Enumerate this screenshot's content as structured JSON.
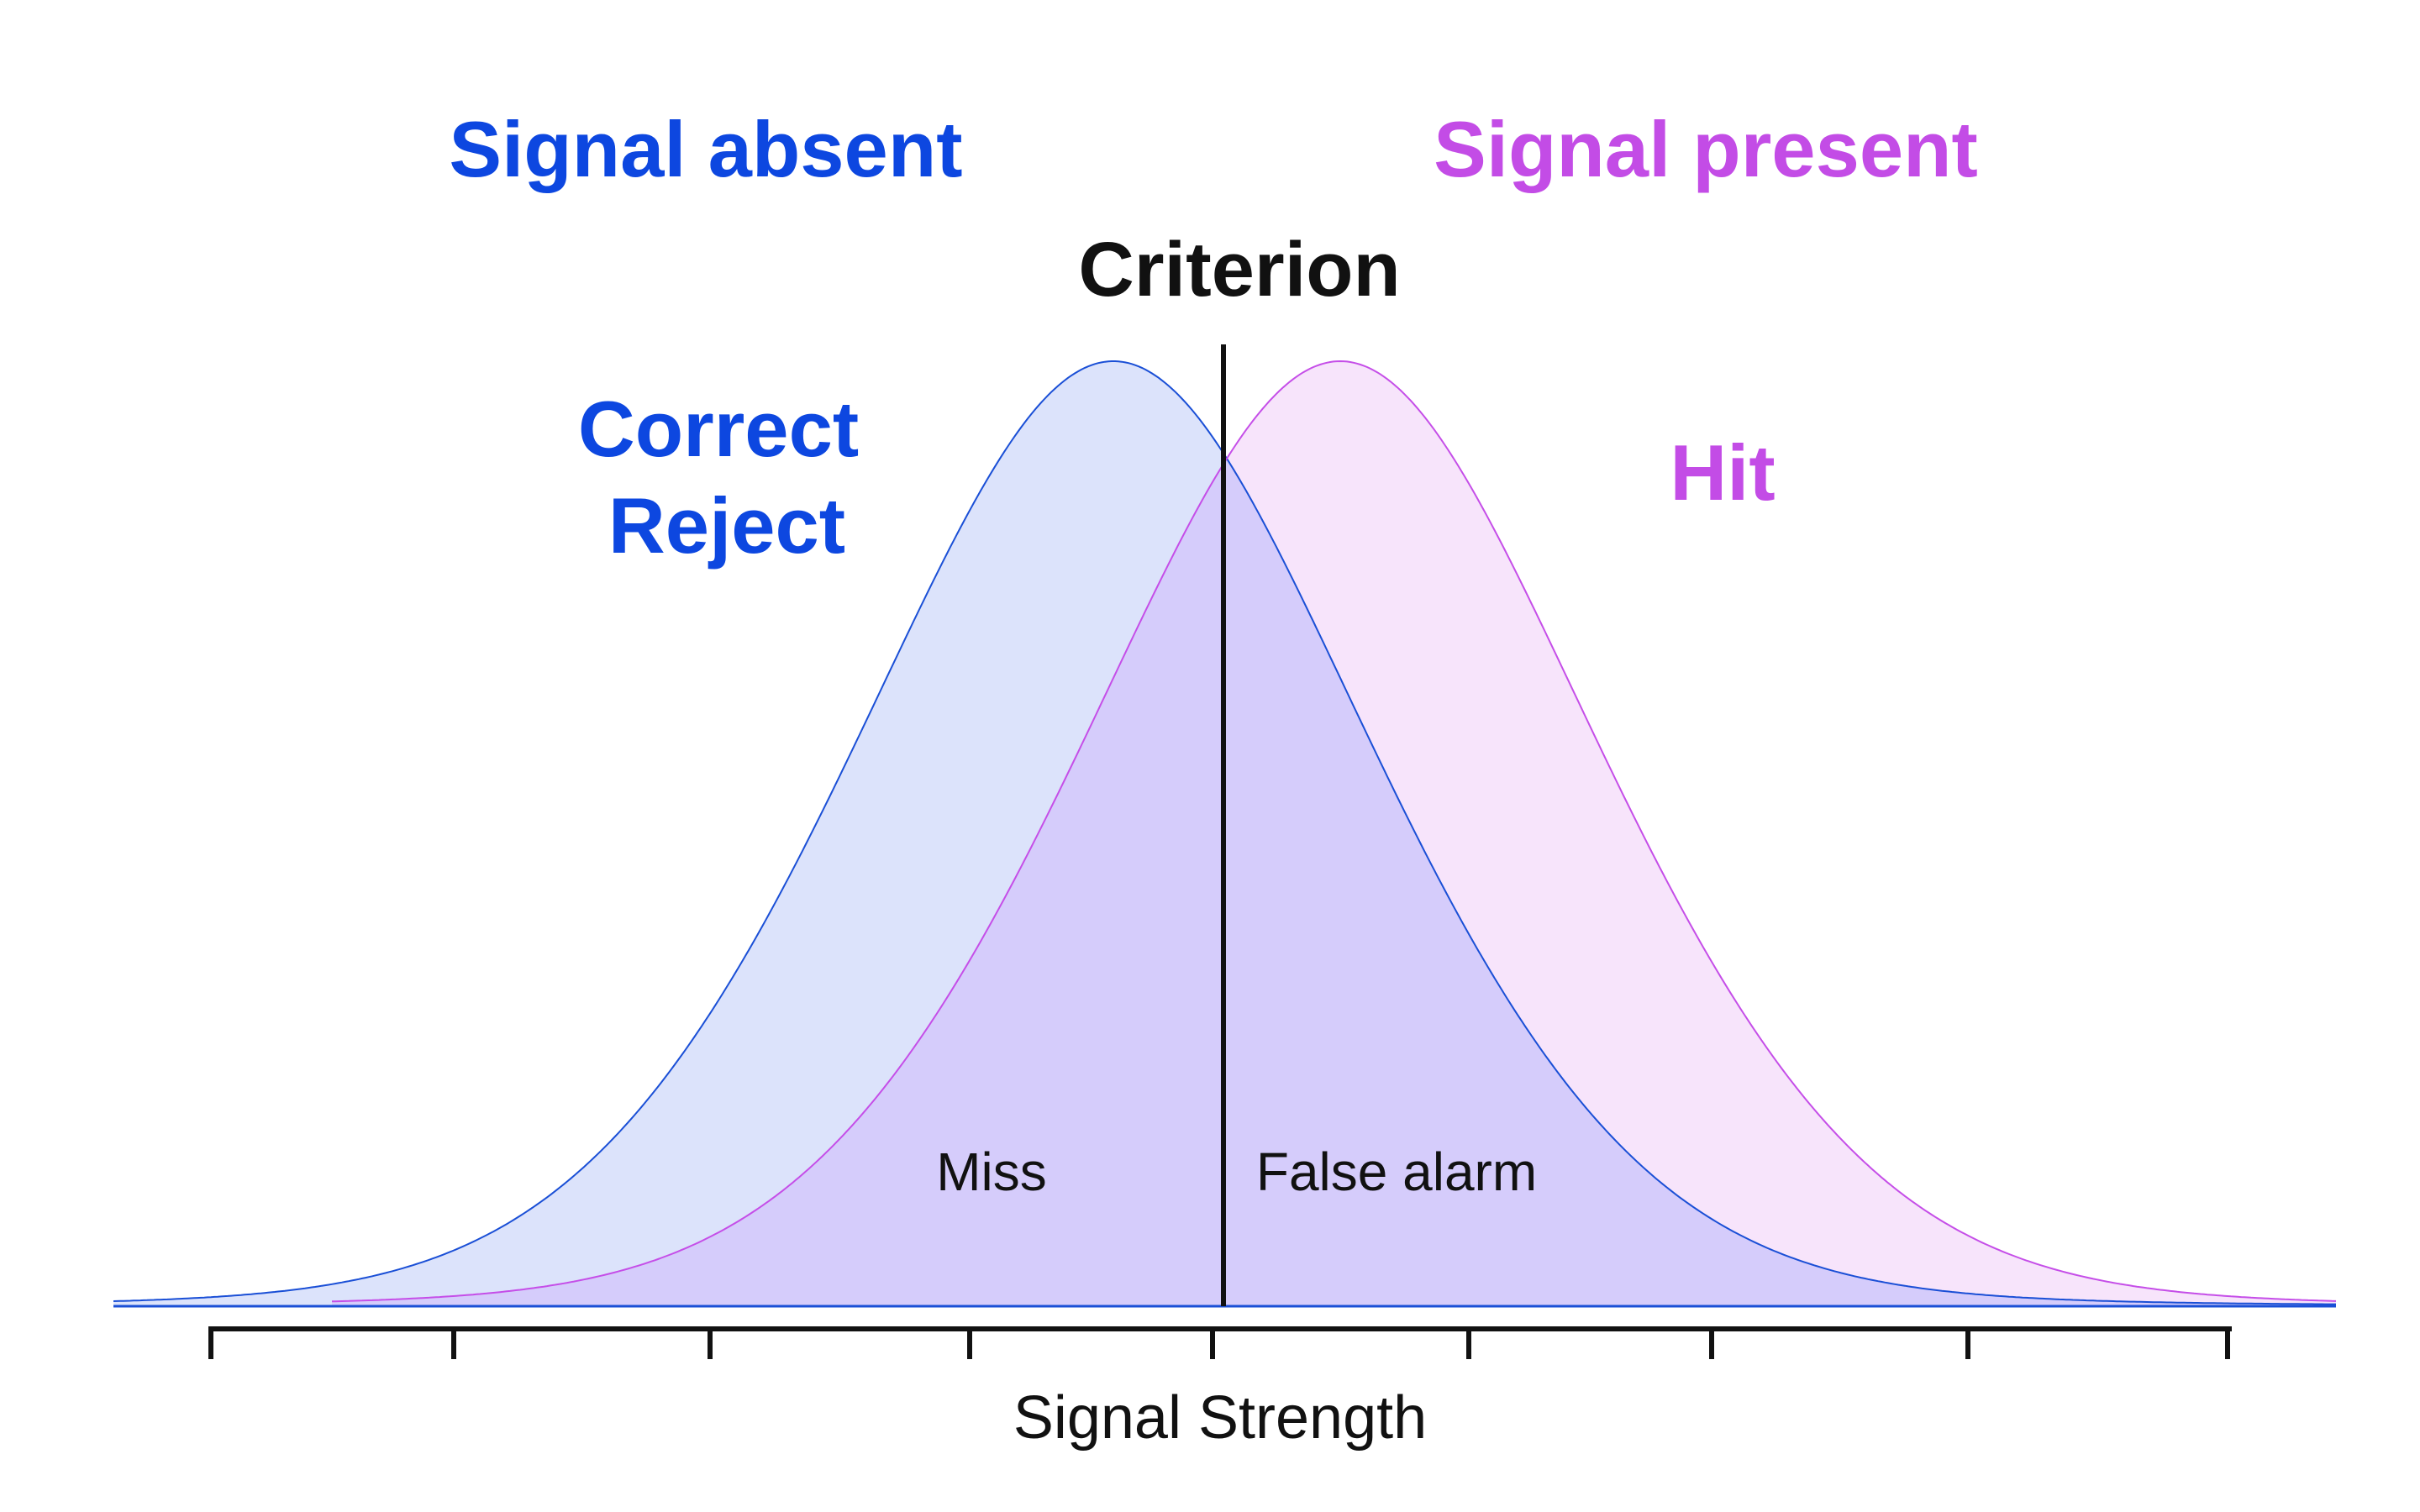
{
  "labels": {
    "signal_absent": "Signal absent",
    "signal_present": "Signal present",
    "criterion": "Criterion",
    "correct_reject_line1": "Correct",
    "correct_reject_line2": "Reject",
    "hit": "Hit",
    "miss": "Miss",
    "false_alarm": "False alarm",
    "x_axis": "Signal Strength"
  },
  "colors": {
    "absent_stroke": "#1a4fd6",
    "absent_fill": "#dce3fb",
    "present_stroke": "#c54ee8",
    "present_fill": "#f6e2fb",
    "overlap_fill": "#d5ccfb",
    "absent_text": "#0d47e0",
    "present_text": "#c34ce6",
    "dark_text": "#111111",
    "axis": "#111111"
  },
  "axis": {
    "tick_count": 9
  }
}
